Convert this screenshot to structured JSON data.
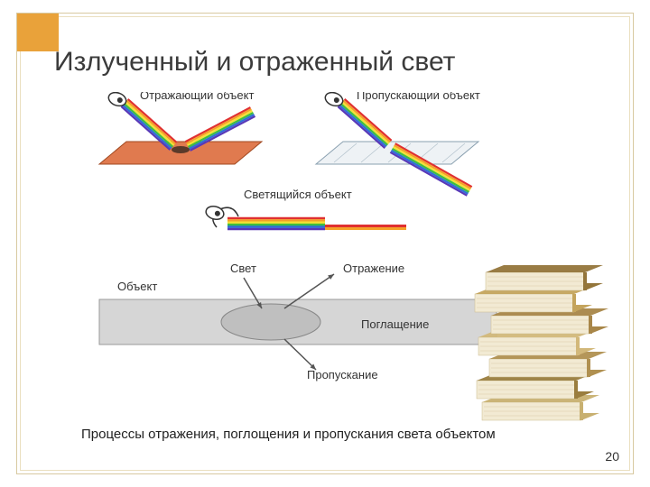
{
  "page": {
    "title": "Излученный и отраженный свет",
    "caption": "Процессы отражения, поглощения и пропускания света объектом",
    "number": "20",
    "corner_color": "#e9a23a",
    "frame_color": "#d8c9a0"
  },
  "diagram": {
    "labels": {
      "reflecting": "Отражающий объект",
      "transmitting": "Пропускающий объект",
      "emitting": "Светящийся объект",
      "object": "Объект",
      "light": "Свет",
      "reflection": "Отражение",
      "absorption": "Поглащение",
      "transmission": "Пропускание"
    },
    "spectrum_colors": [
      "#e03030",
      "#f5a128",
      "#f5e136",
      "#3fbf3f",
      "#2f6fd8",
      "#5838b8"
    ],
    "surface_color": "#e07a4f",
    "glass_fill": "#eef2f5",
    "glass_stroke": "#8aa0b0",
    "grey_slab": "#d6d6d6",
    "ellipse_fill": "#bfbfbf",
    "arrow_color": "#555555",
    "label_fontsize": 13
  },
  "books": {
    "page_color": "#f2ead3",
    "cover_colors": [
      "#c8b070",
      "#9a7d3e",
      "#b09050",
      "#d2b87a",
      "#a88648",
      "#c4a45c",
      "#93753a"
    ]
  }
}
